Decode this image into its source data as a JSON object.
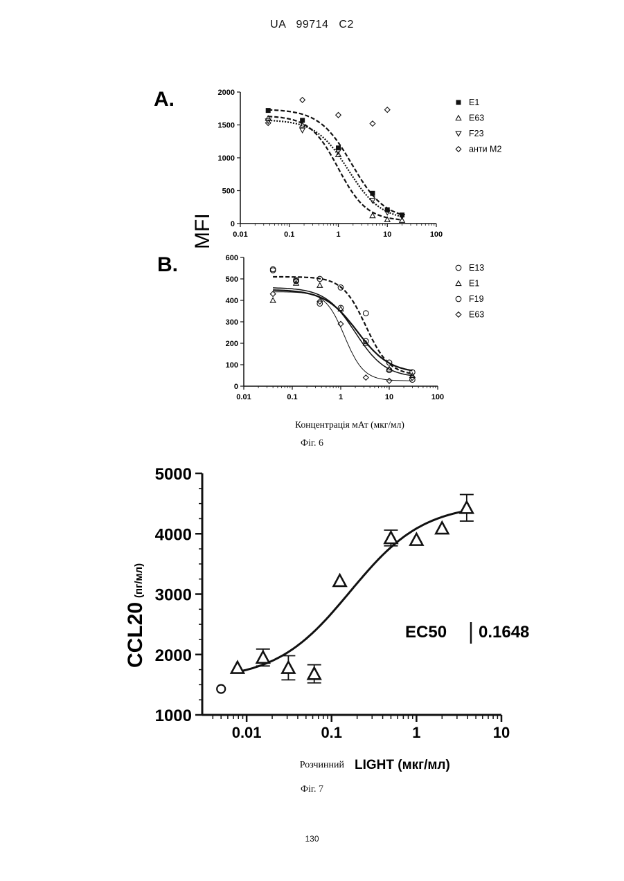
{
  "header": "UA 99714 C2",
  "page_number": "130",
  "fig6_caption": "Фіг. 6",
  "fig7_caption": "Фіг. 7",
  "chart_data": [
    {
      "type": "scatter",
      "panel_label": "A.",
      "xscale": "log",
      "xlim": [
        0.01,
        100
      ],
      "ylim": [
        0,
        2000
      ],
      "x_ticks": [
        "0.01",
        "0.1",
        "1",
        "10",
        "100"
      ],
      "y_ticks": [
        "0",
        "500",
        "1000",
        "1500",
        "2000"
      ],
      "ylabel": "MFI",
      "xlabel": "",
      "legend_position": "right",
      "series": [
        {
          "name": "E1",
          "marker": "filled-square",
          "x": [
            0.037,
            0.185,
            1.0,
            5.0,
            10.0,
            20.0
          ],
          "y": [
            1720,
            1570,
            1150,
            460,
            210,
            130
          ],
          "fit": {
            "top": 1740,
            "bottom": 60,
            "ec50": 1.9,
            "hill": 1.3
          },
          "fit_style": "dashed"
        },
        {
          "name": "E63",
          "marker": "triangle-up",
          "x": [
            0.037,
            0.185,
            1.0,
            5.0,
            10.0,
            20.0
          ],
          "y": [
            1600,
            1500,
            1050,
            120,
            60,
            50
          ],
          "fit": {
            "top": 1640,
            "bottom": 40,
            "ec50": 1.0,
            "hill": 1.5
          },
          "fit_style": "dashed"
        },
        {
          "name": "F23",
          "marker": "triangle-down",
          "x": [
            0.037,
            0.185,
            1.0,
            5.0,
            10.0,
            20.0
          ],
          "y": [
            1560,
            1420,
            1100,
            350,
            170,
            110
          ],
          "fit": {
            "top": 1580,
            "bottom": 50,
            "ec50": 1.6,
            "hill": 1.3
          },
          "fit_style": "dotted"
        },
        {
          "name": "анти M2",
          "marker": "diamond",
          "x": [
            0.037,
            0.185,
            1.0,
            5.0,
            10.0
          ],
          "y": [
            1530,
            1880,
            1650,
            1520,
            1730
          ]
        }
      ]
    },
    {
      "type": "scatter",
      "panel_label": "B.",
      "xscale": "log",
      "xlim": [
        0.01,
        100
      ],
      "ylim": [
        0,
        600
      ],
      "x_ticks": [
        "0.01",
        "0.1",
        "1",
        "10",
        "100"
      ],
      "y_ticks": [
        "0",
        "100",
        "200",
        "300",
        "400",
        "500",
        "600"
      ],
      "xlabel": "Концентрація мАт (мкг/мл)",
      "legend_position": "right",
      "series": [
        {
          "name": "E13",
          "marker": "circle",
          "x": [
            0.04,
            0.12,
            0.37,
            1.0,
            3.3,
            10.0,
            30.0
          ],
          "y": [
            545,
            495,
            500,
            460,
            340,
            110,
            65
          ],
          "fit": {
            "top": 510,
            "bottom": 50,
            "ec50": 3.3,
            "hill": 1.8
          },
          "fit_style": "dashed"
        },
        {
          "name": "E1",
          "marker": "triangle-up",
          "x": [
            0.04,
            0.12,
            0.37,
            1.0,
            3.3,
            10.0,
            30.0
          ],
          "y": [
            400,
            480,
            470,
            360,
            200,
            80,
            50
          ],
          "fit": {
            "top": 460,
            "bottom": 40,
            "ec50": 2.0,
            "hill": 1.4
          },
          "fit_style": "solid"
        },
        {
          "name": "F19",
          "marker": "circle",
          "x": [
            0.04,
            0.12,
            0.37,
            1.0,
            3.3,
            10.0,
            30.0
          ],
          "y": [
            540,
            490,
            385,
            365,
            210,
            75,
            30
          ],
          "fit": {
            "top": 450,
            "bottom": 60,
            "ec50": 2.2,
            "hill": 1.3
          },
          "fit_style": "solid-thick"
        },
        {
          "name": "E63",
          "marker": "diamond",
          "x": [
            0.04,
            0.12,
            0.37,
            1.0,
            3.3,
            10.0,
            30.0
          ],
          "y": [
            430,
            490,
            395,
            290,
            40,
            25,
            40
          ],
          "fit": {
            "top": 440,
            "bottom": 25,
            "ec50": 1.2,
            "hill": 2.2
          },
          "fit_style": "solid-thin"
        }
      ]
    },
    {
      "type": "scatter",
      "xscale": "log",
      "xlim": [
        0.003,
        10
      ],
      "ylim": [
        1000,
        5000
      ],
      "x_ticks": [
        "0.01",
        "0.1",
        "1",
        "10"
      ],
      "y_ticks": [
        "1000",
        "2000",
        "3000",
        "4000",
        "5000"
      ],
      "ylabel": "CCL20",
      "ylabel_unit": "(пг/мл)",
      "xlabel_prefix": "Розчинний",
      "xlabel": "LIGHT (мкг/мл)",
      "annotation_label": "EC50",
      "annotation_value": "0.1648",
      "fit": {
        "bottom": 1580,
        "top": 4500,
        "ec50": 0.1648,
        "hill": 1.0
      },
      "baseline_point": {
        "x": 0.005,
        "y": 1430
      },
      "points": [
        {
          "x": 0.0078,
          "y": 1780,
          "err": 0
        },
        {
          "x": 0.0156,
          "y": 1950,
          "err": 140
        },
        {
          "x": 0.031,
          "y": 1780,
          "err": 200
        },
        {
          "x": 0.0625,
          "y": 1680,
          "err": 150
        },
        {
          "x": 0.125,
          "y": 3220,
          "err": 0
        },
        {
          "x": 0.5,
          "y": 3930,
          "err": 130
        },
        {
          "x": 1.0,
          "y": 3900,
          "err": 0
        },
        {
          "x": 2.0,
          "y": 4090,
          "err": 0
        },
        {
          "x": 3.9,
          "y": 4430,
          "err": 220
        }
      ]
    }
  ]
}
